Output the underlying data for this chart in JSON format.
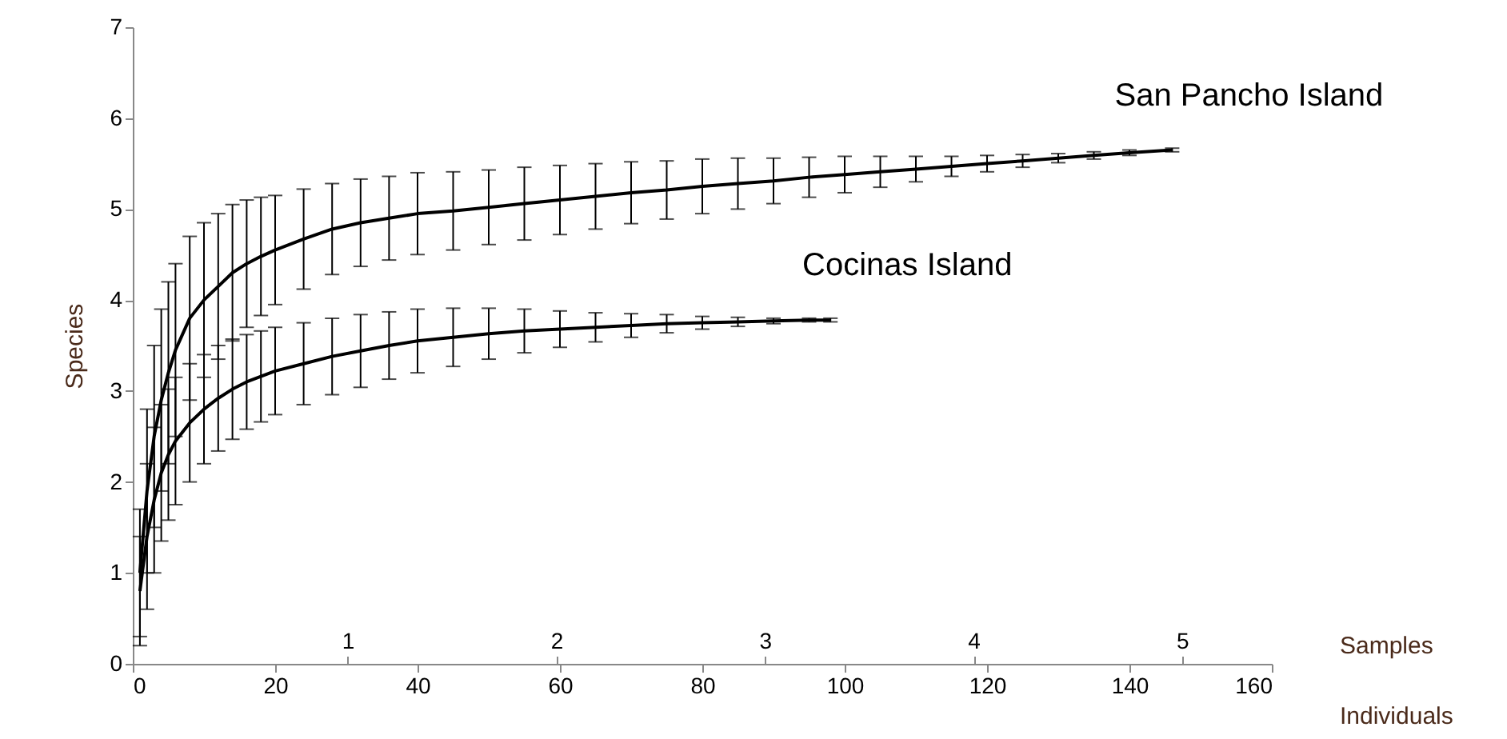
{
  "chart_data": {
    "type": "line",
    "xlabel": "Individuals",
    "ylabel": "Species",
    "x2label": "Samples",
    "xlim": [
      0,
      160
    ],
    "xticks": [
      0,
      20,
      40,
      60,
      80,
      100,
      120,
      140,
      160
    ],
    "x2lim": [
      -0.03,
      5.43
    ],
    "x2ticks": [
      1,
      2,
      3,
      4,
      5
    ],
    "ylim": [
      0,
      7
    ],
    "yticks": [
      0,
      1,
      2,
      3,
      4,
      5,
      6,
      7
    ],
    "grid": false,
    "series": [
      {
        "name": "San Pancho Island",
        "color": "#000000",
        "x": [
          1,
          2,
          3,
          4,
          5,
          6,
          8,
          10,
          12,
          14,
          16,
          18,
          20,
          24,
          28,
          32,
          36,
          40,
          45,
          50,
          55,
          60,
          65,
          70,
          75,
          80,
          85,
          90,
          95,
          100,
          105,
          110,
          115,
          120,
          125,
          130,
          135,
          140,
          146
        ],
        "values": [
          1.0,
          1.9,
          2.5,
          2.9,
          3.2,
          3.45,
          3.8,
          4.0,
          4.15,
          4.3,
          4.4,
          4.48,
          4.55,
          4.67,
          4.78,
          4.85,
          4.9,
          4.95,
          4.98,
          5.02,
          5.06,
          5.1,
          5.14,
          5.18,
          5.21,
          5.25,
          5.28,
          5.31,
          5.35,
          5.38,
          5.41,
          5.44,
          5.47,
          5.5,
          5.53,
          5.56,
          5.59,
          5.62,
          5.65
        ],
        "errors": [
          0.7,
          0.9,
          1.0,
          1.0,
          1.0,
          0.95,
          0.9,
          0.85,
          0.8,
          0.75,
          0.7,
          0.65,
          0.6,
          0.55,
          0.5,
          0.48,
          0.46,
          0.45,
          0.43,
          0.41,
          0.4,
          0.38,
          0.36,
          0.34,
          0.32,
          0.3,
          0.28,
          0.25,
          0.22,
          0.2,
          0.17,
          0.14,
          0.11,
          0.09,
          0.07,
          0.05,
          0.04,
          0.03,
          0.02
        ]
      },
      {
        "name": "Cocinas Island",
        "color": "#000000",
        "x": [
          1,
          2,
          3,
          4,
          5,
          6,
          8,
          10,
          12,
          14,
          16,
          18,
          20,
          24,
          28,
          32,
          36,
          40,
          45,
          50,
          55,
          60,
          65,
          70,
          75,
          80,
          85,
          90,
          95,
          98
        ],
        "values": [
          0.8,
          1.4,
          1.8,
          2.1,
          2.3,
          2.45,
          2.65,
          2.8,
          2.92,
          3.02,
          3.1,
          3.16,
          3.22,
          3.3,
          3.38,
          3.44,
          3.5,
          3.55,
          3.59,
          3.63,
          3.66,
          3.68,
          3.7,
          3.72,
          3.74,
          3.75,
          3.76,
          3.77,
          3.78,
          3.78
        ],
        "errors": [
          0.6,
          0.8,
          0.8,
          0.75,
          0.72,
          0.7,
          0.65,
          0.6,
          0.58,
          0.55,
          0.52,
          0.5,
          0.48,
          0.45,
          0.42,
          0.4,
          0.37,
          0.35,
          0.32,
          0.28,
          0.24,
          0.2,
          0.16,
          0.13,
          0.1,
          0.07,
          0.05,
          0.03,
          0.02,
          0.02
        ]
      }
    ]
  }
}
